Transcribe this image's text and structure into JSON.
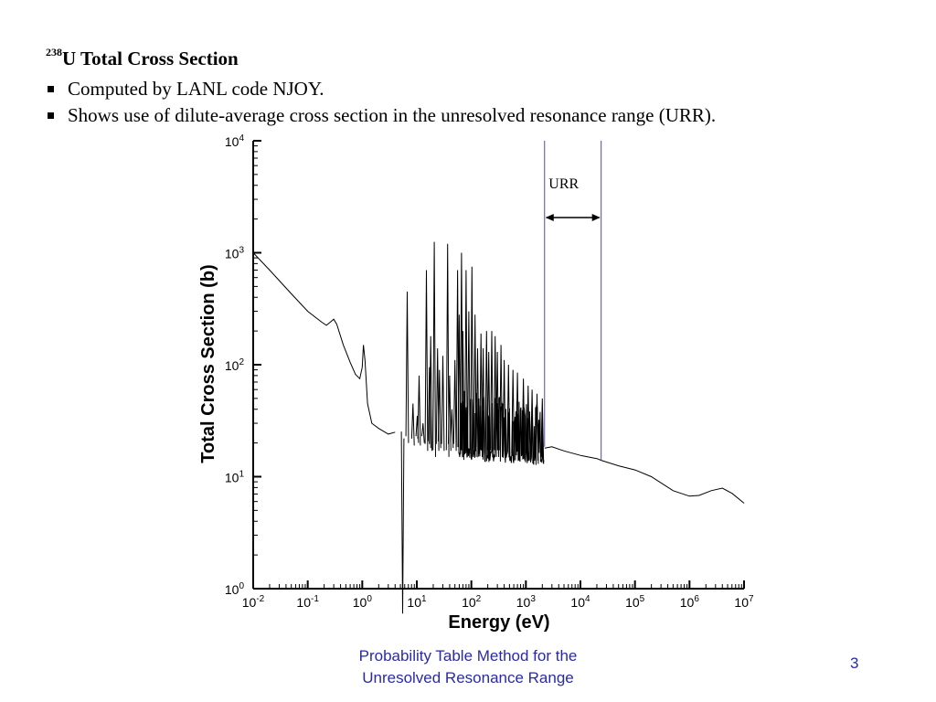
{
  "slide": {
    "title_sup": "238",
    "title_text": "U Total Cross Section",
    "bullets": [
      "Computed by LANL code NJOY.",
      "Shows use of dilute-average cross section in the unresolved resonance range (URR)."
    ],
    "footer_line1": "Probability Table Method for the",
    "footer_line2": "Unresolved Resonance Range",
    "page_number": "3",
    "footer_color": "#2a2aa8"
  },
  "chart_data": {
    "type": "line",
    "xlabel": "Energy (eV)",
    "ylabel": "Total Cross Section (b)",
    "xscale": "log",
    "yscale": "log",
    "xlim": [
      0.01,
      10000000
    ],
    "ylim": [
      1,
      10000
    ],
    "x_ticks": [
      {
        "base": "10",
        "exp": "-2"
      },
      {
        "base": "10",
        "exp": "-1"
      },
      {
        "base": "10",
        "exp": "0"
      },
      {
        "base": "10",
        "exp": "1"
      },
      {
        "base": "10",
        "exp": "2"
      },
      {
        "base": "10",
        "exp": "3"
      },
      {
        "base": "10",
        "exp": "4"
      },
      {
        "base": "10",
        "exp": "5"
      },
      {
        "base": "10",
        "exp": "6"
      },
      {
        "base": "10",
        "exp": "7"
      }
    ],
    "y_ticks": [
      {
        "base": "10",
        "exp": "0"
      },
      {
        "base": "10",
        "exp": "1"
      },
      {
        "base": "10",
        "exp": "2"
      },
      {
        "base": "10",
        "exp": "3"
      },
      {
        "base": "10",
        "exp": "4"
      }
    ],
    "urr_region": {
      "label": "URR",
      "x_start": 2200,
      "x_end": 24000,
      "line_color": "#4a4ab8"
    },
    "series": [
      {
        "color": "#000000",
        "points": [
          [
            0.01,
            1000
          ],
          [
            0.02,
            700
          ],
          [
            0.05,
            430
          ],
          [
            0.1,
            300
          ],
          [
            0.18,
            240
          ],
          [
            0.22,
            225
          ],
          [
            0.26,
            240
          ],
          [
            0.3,
            255
          ],
          [
            0.34,
            230
          ],
          [
            0.45,
            150
          ],
          [
            0.6,
            105
          ],
          [
            0.75,
            82
          ],
          [
            0.9,
            75
          ],
          [
            1.0,
            95
          ],
          [
            1.05,
            150
          ],
          [
            1.12,
            110
          ],
          [
            1.25,
            45
          ],
          [
            1.5,
            30
          ],
          [
            2.0,
            27
          ],
          [
            3.0,
            24
          ],
          [
            4.0,
            25
          ]
        ],
        "resonances": [
          [
            5.5,
            0.6,
            22
          ],
          [
            6.67,
            450,
            20
          ],
          [
            8.5,
            45,
            19
          ],
          [
            10.2,
            35,
            20
          ],
          [
            11.0,
            80,
            19
          ],
          [
            13.0,
            30,
            20
          ],
          [
            15.0,
            700,
            17
          ],
          [
            17.0,
            95,
            18
          ],
          [
            18.0,
            180,
            17
          ],
          [
            20.9,
            1250,
            15
          ],
          [
            24.0,
            140,
            17
          ],
          [
            26.0,
            90,
            18
          ],
          [
            30.0,
            120,
            17
          ],
          [
            36.7,
            1200,
            15
          ],
          [
            40.0,
            80,
            17
          ],
          [
            44.0,
            40,
            18
          ],
          [
            50.0,
            110,
            17
          ],
          [
            56.0,
            700,
            16
          ],
          [
            60.0,
            280,
            16
          ],
          [
            66.0,
            1000,
            15
          ],
          [
            70.0,
            200,
            16
          ],
          [
            80.0,
            700,
            15
          ],
          [
            90.0,
            300,
            16
          ],
          [
            102.5,
            750,
            15
          ],
          [
            116.9,
            280,
            15
          ],
          [
            130.0,
            140,
            16
          ],
          [
            150.0,
            190,
            15
          ],
          [
            165.0,
            140,
            16
          ],
          [
            190.0,
            200,
            15
          ],
          [
            208.5,
            130,
            15
          ],
          [
            237.0,
            200,
            15
          ],
          [
            273.6,
            180,
            15
          ],
          [
            300.0,
            130,
            15
          ],
          [
            350.0,
            150,
            15
          ],
          [
            400.0,
            110,
            14
          ],
          [
            480.0,
            100,
            14
          ],
          [
            580.0,
            90,
            14
          ],
          [
            700.0,
            85,
            14
          ],
          [
            900.0,
            75,
            14
          ],
          [
            1100.0,
            65,
            14
          ],
          [
            1300.0,
            60,
            13
          ],
          [
            1600.0,
            55,
            13
          ],
          [
            2000.0,
            50,
            13
          ]
        ],
        "dense_band": {
          "x_start": 60,
          "x_end": 2200,
          "low": 14,
          "high": 60
        },
        "tail": [
          [
            2200,
            18
          ],
          [
            3000,
            18.5
          ],
          [
            5000,
            17
          ],
          [
            10000,
            15.5
          ],
          [
            20000,
            14.5
          ],
          [
            24000,
            14
          ],
          [
            50000,
            12.5
          ],
          [
            100000,
            11.5
          ],
          [
            200000,
            10
          ],
          [
            500000,
            7.5
          ],
          [
            1000000,
            6.7
          ],
          [
            1500000,
            6.8
          ],
          [
            2500000,
            7.5
          ],
          [
            4000000,
            7.9
          ],
          [
            6000000,
            7.1
          ],
          [
            10000000,
            5.8
          ]
        ]
      }
    ]
  }
}
